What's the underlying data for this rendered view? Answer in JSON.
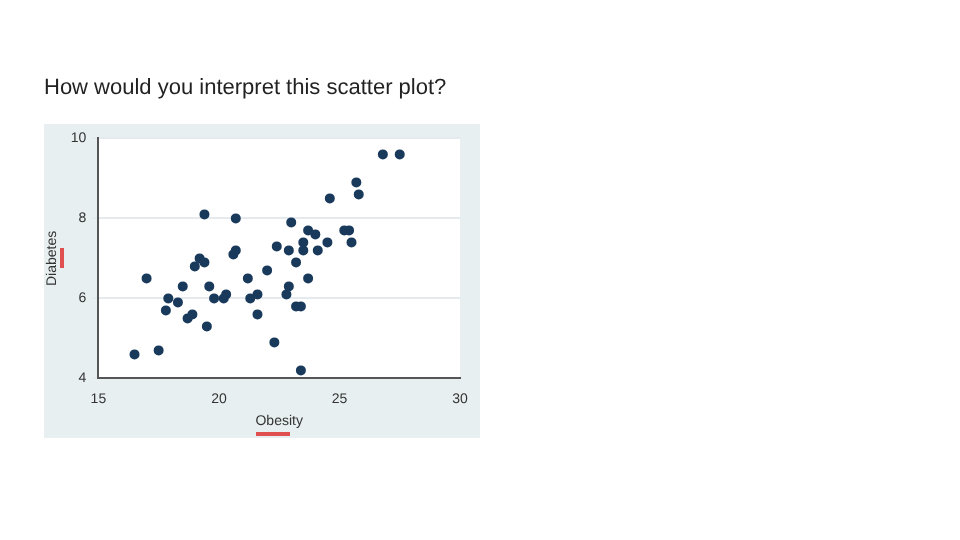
{
  "chart_data": {
    "type": "scatter",
    "title": "How would you interpret this scatter plot?",
    "xlabel": "Obesity",
    "ylabel": "Diabetes",
    "series": [
      {
        "color": "#1a3a5c",
        "x": [
          16.5,
          17.5,
          17.0,
          17.8,
          17.9,
          18.3,
          18.5,
          18.7,
          18.9,
          19.0,
          19.2,
          19.4,
          19.4,
          19.5,
          19.6,
          19.8,
          20.2,
          20.3,
          20.6,
          20.7,
          20.7,
          21.2,
          21.3,
          21.6,
          21.6,
          22.0,
          22.4,
          22.3,
          22.8,
          22.9,
          22.9,
          23.0,
          23.2,
          23.2,
          23.4,
          23.4,
          23.5,
          23.5,
          23.7,
          23.7,
          24.0,
          24.1,
          24.5,
          24.6,
          25.2,
          25.4,
          25.5,
          25.7,
          25.8,
          26.8,
          27.5
        ],
        "values": [
          4.6,
          4.7,
          6.5,
          5.7,
          6.0,
          5.9,
          6.3,
          5.5,
          5.6,
          6.8,
          7.0,
          6.9,
          8.1,
          5.3,
          6.3,
          6.0,
          6.0,
          6.1,
          7.1,
          7.2,
          8.0,
          6.5,
          6.0,
          6.1,
          5.6,
          6.7,
          7.3,
          4.9,
          6.1,
          6.3,
          7.2,
          7.9,
          5.8,
          6.9,
          5.8,
          4.2,
          7.2,
          7.4,
          7.7,
          6.5,
          7.6,
          7.2,
          7.4,
          8.5,
          7.7,
          7.7,
          7.4,
          8.9,
          8.6,
          9.6,
          9.6
        ]
      }
    ],
    "xlim": [
      15,
      30
    ],
    "xticks": [
      15,
      20,
      25,
      30
    ],
    "ylim": [
      4,
      10
    ],
    "yticks": [
      4,
      6,
      8,
      10
    ],
    "grid": "y",
    "marker": "circle",
    "legend": false
  }
}
